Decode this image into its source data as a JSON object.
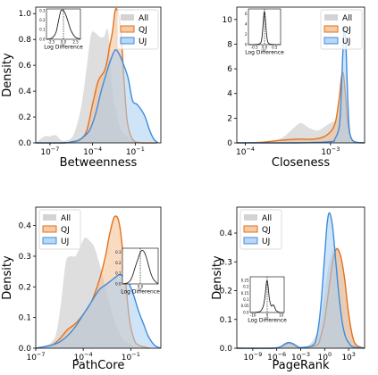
{
  "chart_data": [
    {
      "type": "area",
      "xlabel": "Betweenness",
      "ylabel": "Density",
      "xscale": "log",
      "xlim_log10": [
        -8,
        0.8
      ],
      "ylim": [
        0,
        1.05
      ],
      "xticks": [
        {
          "pow": -7,
          "label": "10^{-7}"
        },
        {
          "pow": -4,
          "label": "10^{-4}"
        },
        {
          "pow": -1,
          "label": "10^{-1}"
        }
      ],
      "yticks": [
        0.0,
        0.2,
        0.4,
        0.6,
        0.8,
        1.0
      ],
      "legend": {
        "entries": [
          "All",
          "QJ",
          "UJ"
        ],
        "position": "upper-right"
      },
      "series": [
        {
          "name": "All",
          "x": [
            -8,
            -7.4,
            -7,
            -6.6,
            -6.2,
            -5.8,
            -5.4,
            -5,
            -4.7,
            -4.4,
            -4.1,
            -3.8,
            -3.5,
            -3.2,
            -2.9,
            -2.6,
            -2.3,
            -2,
            -1.6,
            -1.2,
            -0.8,
            -0.4,
            0,
            0.5
          ],
          "y": [
            0,
            0.05,
            0.05,
            0.06,
            0.02,
            0.02,
            0.05,
            0.18,
            0.35,
            0.6,
            0.84,
            0.85,
            0.82,
            0.82,
            0.86,
            0.4,
            0.22,
            0.1,
            0.05,
            0.02,
            0.01,
            0.0,
            0.0,
            0
          ]
        },
        {
          "name": "QJ",
          "x": [
            -8,
            -6,
            -5.2,
            -4.8,
            -4.4,
            -4,
            -3.6,
            -3.2,
            -3,
            -2.8,
            -2.6,
            -2.4,
            -2.2,
            -2,
            -1.8,
            -1.6,
            -1.4,
            -1.2,
            -1,
            -0.5,
            0.5
          ],
          "y": [
            0,
            0,
            0.01,
            0.03,
            0.1,
            0.3,
            0.48,
            0.55,
            0.62,
            0.75,
            0.86,
            1.03,
            1.0,
            0.85,
            0.5,
            0.2,
            0.08,
            0.03,
            0.01,
            0,
            0
          ]
        },
        {
          "name": "UJ",
          "x": [
            -8,
            -6,
            -5.4,
            -5,
            -4.6,
            -4.2,
            -3.8,
            -3.4,
            -3,
            -2.7,
            -2.4,
            -2.1,
            -1.8,
            -1.5,
            -1.2,
            -0.9,
            -0.6,
            -0.3,
            0,
            0.3,
            0.6
          ],
          "y": [
            0,
            0,
            0.01,
            0.02,
            0.05,
            0.1,
            0.22,
            0.4,
            0.55,
            0.65,
            0.72,
            0.68,
            0.6,
            0.5,
            0.33,
            0.3,
            0.26,
            0.2,
            0.1,
            0.03,
            0
          ]
        }
      ],
      "inset": {
        "xlabel": "Log Difference",
        "xticks": [
          -2.5,
          0.0,
          2.5
        ],
        "yticks": [
          0.0,
          0.1,
          0.2,
          0.3
        ],
        "xlim": [
          -3.5,
          3.5
        ],
        "ylim": [
          0,
          0.32
        ],
        "curve_x": [
          -3.5,
          -2.5,
          -2,
          -1.5,
          -1,
          -0.6,
          -0.3,
          0,
          0.3,
          0.6,
          1,
          1.5,
          2,
          2.5,
          3,
          3.5
        ],
        "curve_y": [
          0,
          0.01,
          0.03,
          0.08,
          0.2,
          0.29,
          0.31,
          0.3,
          0.28,
          0.24,
          0.18,
          0.1,
          0.05,
          0.02,
          0.01,
          0
        ]
      }
    },
    {
      "type": "area",
      "xlabel": "Closeness",
      "ylabel": "",
      "xscale": "log",
      "xlim_log10": [
        -4.1,
        -2.6
      ],
      "ylim": [
        0,
        11
      ],
      "xticks": [
        {
          "pow": -4,
          "label": "10^{-4}"
        },
        {
          "pow": -3,
          "label": "10^{-3}"
        }
      ],
      "yticks": [
        0,
        2,
        4,
        6,
        8,
        10
      ],
      "legend": {
        "entries": [
          "All",
          "QJ",
          "UJ"
        ],
        "position": "upper-right"
      },
      "series": [
        {
          "name": "All",
          "x": [
            -4.1,
            -3.7,
            -3.55,
            -3.45,
            -3.35,
            -3.25,
            -3.15,
            -3.05,
            -2.98,
            -2.92,
            -2.88,
            -2.85,
            -2.82,
            -2.78,
            -2.72,
            -2.6
          ],
          "y": [
            0,
            0.1,
            0.5,
            1.1,
            1.6,
            1.2,
            1.0,
            1.4,
            1.7,
            2.0,
            3.5,
            4.7,
            2.5,
            0.8,
            0.1,
            0
          ]
        },
        {
          "name": "QJ",
          "x": [
            -4.1,
            -3.8,
            -3.6,
            -3.4,
            -3.2,
            -3.05,
            -2.95,
            -2.9,
            -2.87,
            -2.85,
            -2.83,
            -2.8,
            -2.77,
            -2.72,
            -2.6
          ],
          "y": [
            0,
            0.05,
            0.2,
            0.3,
            0.3,
            0.6,
            1.5,
            3.5,
            5.4,
            5.6,
            4.3,
            1.8,
            0.6,
            0.1,
            0
          ]
        },
        {
          "name": "UJ",
          "x": [
            -4.1,
            -3.4,
            -3.0,
            -2.95,
            -2.9,
            -2.88,
            -2.86,
            -2.84,
            -2.82,
            -2.8,
            -2.78,
            -2.75,
            -2.7,
            -2.6
          ],
          "y": [
            0,
            0,
            0.1,
            0.3,
            1.2,
            3.0,
            6.5,
            9.3,
            8.0,
            4.0,
            1.2,
            0.3,
            0.05,
            0
          ]
        }
      ],
      "inset": {
        "xlabel": "Log Difference",
        "xticks": [
          -0.5,
          0.0,
          0.5
        ],
        "yticks": [
          0,
          2,
          4,
          6
        ],
        "xlim": [
          -0.8,
          0.8
        ],
        "ylim": [
          0,
          7
        ],
        "curve_x": [
          -0.8,
          -0.3,
          -0.15,
          -0.08,
          -0.03,
          0,
          0.03,
          0.08,
          0.15,
          0.3,
          0.8
        ],
        "curve_y": [
          0,
          0.1,
          0.8,
          3.5,
          6.0,
          6.5,
          5.5,
          3.0,
          0.7,
          0.1,
          0
        ]
      }
    },
    {
      "type": "area",
      "xlabel": "PathCore",
      "ylabel": "Density",
      "xscale": "log",
      "xlim_log10": [
        -7,
        0.9
      ],
      "ylim": [
        0,
        0.46
      ],
      "xticks": [
        {
          "pow": -7,
          "label": "10^{-7}"
        },
        {
          "pow": -4,
          "label": "10^{-4}"
        },
        {
          "pow": -1,
          "label": "10^{-1}"
        }
      ],
      "yticks": [
        0.0,
        0.1,
        0.2,
        0.3,
        0.4
      ],
      "legend": {
        "entries": [
          "All",
          "QJ",
          "UJ"
        ],
        "position": "upper-left"
      },
      "series": [
        {
          "name": "All",
          "x": [
            -7,
            -6.6,
            -6.3,
            -6,
            -5.7,
            -5.4,
            -5.1,
            -4.8,
            -4.5,
            -4.2,
            -3.9,
            -3.6,
            -3.3,
            -3,
            -2.7,
            -2.4,
            -2.1,
            -1.8,
            -1.5,
            -1.2,
            -0.9,
            -0.5,
            0.5
          ],
          "y": [
            0,
            0.005,
            0.01,
            0.02,
            0.05,
            0.15,
            0.28,
            0.3,
            0.3,
            0.33,
            0.36,
            0.35,
            0.33,
            0.28,
            0.22,
            0.16,
            0.1,
            0.06,
            0.03,
            0.02,
            0.01,
            0,
            0
          ]
        },
        {
          "name": "QJ",
          "x": [
            -7,
            -6,
            -5.5,
            -5,
            -4.5,
            -4,
            -3.5,
            -3,
            -2.6,
            -2.3,
            -2.0,
            -1.7,
            -1.4,
            -1.1,
            -0.8,
            -0.5,
            0.2
          ],
          "y": [
            0,
            0.01,
            0.03,
            0.06,
            0.08,
            0.11,
            0.15,
            0.22,
            0.3,
            0.38,
            0.43,
            0.4,
            0.26,
            0.1,
            0.03,
            0.01,
            0
          ]
        },
        {
          "name": "UJ",
          "x": [
            -7,
            -6,
            -5.5,
            -5,
            -4.5,
            -4,
            -3.5,
            -3,
            -2.5,
            -2,
            -1.7,
            -1.4,
            -1.1,
            -0.8,
            -0.5,
            -0.2,
            0.1,
            0.5,
            0.9
          ],
          "y": [
            0,
            0.01,
            0.02,
            0.04,
            0.07,
            0.11,
            0.15,
            0.19,
            0.21,
            0.23,
            0.24,
            0.23,
            0.21,
            0.17,
            0.12,
            0.08,
            0.04,
            0.01,
            0
          ]
        }
      ],
      "inset": {
        "xlabel": "Log Difference",
        "xticks": [
          0
        ],
        "yticks": [
          0.0,
          0.1,
          0.2,
          0.3
        ],
        "xlim": [
          -3.5,
          3.5
        ],
        "ylim": [
          0,
          0.34
        ],
        "curve_x": [
          -3.5,
          -2.5,
          -2,
          -1.5,
          -1,
          -0.5,
          0,
          0.4,
          0.8,
          1.2,
          1.6,
          2,
          2.5,
          3,
          3.5
        ],
        "curve_y": [
          0,
          0.01,
          0.03,
          0.08,
          0.16,
          0.23,
          0.3,
          0.32,
          0.3,
          0.25,
          0.18,
          0.11,
          0.05,
          0.02,
          0
        ]
      }
    },
    {
      "type": "area",
      "xlabel": "PageRank",
      "ylabel": "Density",
      "xscale": "log",
      "xlim_log10": [
        -11,
        5
      ],
      "ylim": [
        0,
        0.49
      ],
      "xticks": [
        {
          "pow": -9,
          "label": "10^{-9}"
        },
        {
          "pow": -6,
          "label": "10^{-6}"
        },
        {
          "pow": -3,
          "label": "10^{-3}"
        },
        {
          "pow": 0,
          "label": "10^{0}"
        },
        {
          "pow": 3,
          "label": "10^{3}"
        }
      ],
      "yticks": [
        0.0,
        0.1,
        0.2,
        0.3,
        0.4
      ],
      "legend": {
        "entries": [
          "All",
          "QJ",
          "UJ"
        ],
        "position": "upper-left"
      },
      "series": [
        {
          "name": "All",
          "x": [
            -11,
            -7,
            -6,
            -5,
            -4.5,
            -4,
            -3.5,
            -3,
            -2,
            -1,
            -0.5,
            0,
            0.5,
            1,
            1.5,
            2,
            2.5,
            3,
            3.5,
            4,
            5
          ],
          "y": [
            0,
            0,
            0.003,
            0.01,
            0.02,
            0.018,
            0.01,
            0.005,
            0.01,
            0.05,
            0.1,
            0.2,
            0.29,
            0.34,
            0.35,
            0.32,
            0.25,
            0.14,
            0.05,
            0.01,
            0
          ]
        },
        {
          "name": "QJ",
          "x": [
            -11,
            -6.5,
            -5.5,
            -5,
            -4.5,
            -4,
            -3.5,
            -3,
            -1,
            -0.5,
            0,
            0.5,
            1,
            1.5,
            2,
            2.5,
            3,
            3.5,
            4,
            5
          ],
          "y": [
            0,
            0,
            0.005,
            0.012,
            0.018,
            0.014,
            0.006,
            0.002,
            0.01,
            0.04,
            0.1,
            0.2,
            0.3,
            0.345,
            0.32,
            0.24,
            0.12,
            0.04,
            0.01,
            0
          ]
        },
        {
          "name": "UJ",
          "x": [
            -11,
            -6.5,
            -5.5,
            -5,
            -4.5,
            -4,
            -3.5,
            -3,
            -1.5,
            -1,
            -0.5,
            0,
            0.3,
            0.6,
            1,
            1.4,
            1.8,
            2.2,
            2.6,
            3,
            3.5,
            5
          ],
          "y": [
            0,
            0,
            0.006,
            0.015,
            0.02,
            0.016,
            0.008,
            0.002,
            0.01,
            0.04,
            0.14,
            0.32,
            0.43,
            0.47,
            0.42,
            0.3,
            0.18,
            0.09,
            0.04,
            0.02,
            0.005,
            0
          ]
        }
      ],
      "inset": {
        "xlabel": "Log Difference",
        "xticks": [
          -10,
          0,
          10
        ],
        "yticks": [
          0.0,
          0.05,
          0.1,
          0.15,
          0.2,
          0.25
        ],
        "xlim": [
          -12,
          12
        ],
        "ylim": [
          0,
          0.28
        ],
        "curve_x": [
          -12,
          -6,
          -4,
          -2.5,
          -1.5,
          -0.7,
          0,
          0.7,
          1.5,
          2.5,
          3.2,
          4,
          5,
          6,
          7,
          9,
          12
        ],
        "curve_y": [
          0,
          0.005,
          0.02,
          0.06,
          0.13,
          0.22,
          0.25,
          0.2,
          0.11,
          0.06,
          0.05,
          0.06,
          0.05,
          0.02,
          0.01,
          0,
          0
        ]
      }
    }
  ]
}
